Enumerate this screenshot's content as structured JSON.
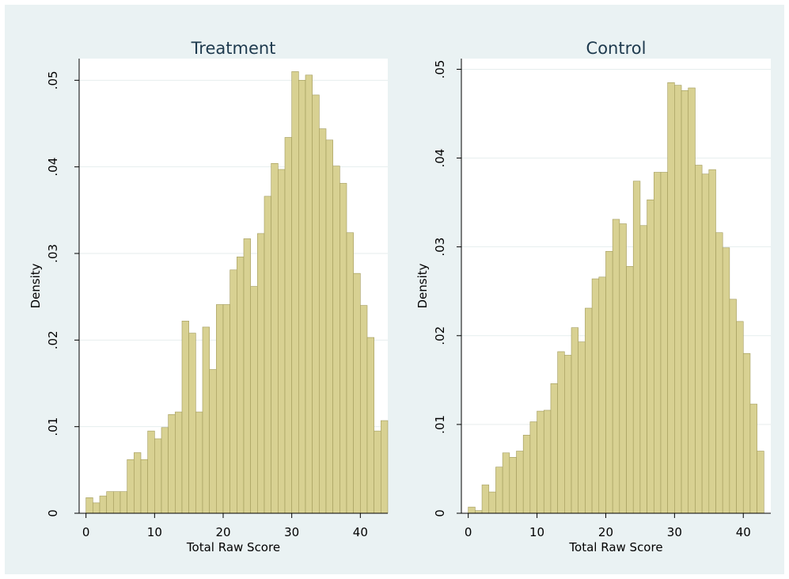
{
  "colors": {
    "background": "#eaf2f3",
    "plot_background": "#ffffff",
    "bar_fill": "#d8d192",
    "bar_stroke": "#a19a5a",
    "grid": "#e6eeee"
  },
  "chart_data": [
    {
      "type": "bar",
      "title": "Treatment",
      "xlabel": "Total Raw Score",
      "ylabel": "Density",
      "xlim": [
        -1,
        44
      ],
      "ylim": [
        0,
        0.0525
      ],
      "xticks": [
        0,
        10,
        20,
        30,
        40
      ],
      "xtick_labels": [
        "0",
        "10",
        "20",
        "30",
        "40"
      ],
      "yticks": [
        0,
        0.01,
        0.02,
        0.03,
        0.04,
        0.05
      ],
      "ytick_labels": [
        "0",
        ".01",
        ".02",
        ".03",
        ".04",
        ".05"
      ],
      "grid": true,
      "bin_width": 1,
      "bin_start": 0,
      "values": [
        0.0018,
        0.0012,
        0.002,
        0.0025,
        0.0025,
        0.0025,
        0.0062,
        0.007,
        0.0062,
        0.0095,
        0.0086,
        0.0099,
        0.0114,
        0.0117,
        0.0222,
        0.0208,
        0.0117,
        0.0215,
        0.0166,
        0.0241,
        0.0241,
        0.0281,
        0.0296,
        0.0317,
        0.0262,
        0.0323,
        0.0366,
        0.0404,
        0.0397,
        0.0434,
        0.051,
        0.05,
        0.0506,
        0.0483,
        0.0444,
        0.0431,
        0.0401,
        0.0381,
        0.0324,
        0.0277,
        0.024,
        0.0203,
        0.0095,
        0.0107
      ]
    },
    {
      "type": "bar",
      "title": "Control",
      "xlabel": "Total Raw Score",
      "ylabel": "Density",
      "xlim": [
        -1,
        44
      ],
      "ylim": [
        0,
        0.0512
      ],
      "xticks": [
        0,
        10,
        20,
        30,
        40
      ],
      "xtick_labels": [
        "0",
        "10",
        "20",
        "30",
        "40"
      ],
      "yticks": [
        0,
        0.01,
        0.02,
        0.03,
        0.04,
        0.05
      ],
      "ytick_labels": [
        "0",
        ".01",
        ".02",
        ".03",
        ".04",
        ".05"
      ],
      "grid": true,
      "bin_width": 1,
      "bin_start": 0,
      "values": [
        0.0007,
        0.0003,
        0.0032,
        0.0024,
        0.0052,
        0.0068,
        0.0063,
        0.007,
        0.0088,
        0.0103,
        0.0115,
        0.0116,
        0.0146,
        0.0182,
        0.0178,
        0.0209,
        0.0193,
        0.0231,
        0.0264,
        0.0266,
        0.0295,
        0.0331,
        0.0326,
        0.0278,
        0.0374,
        0.0324,
        0.0353,
        0.0384,
        0.0384,
        0.0485,
        0.0482,
        0.0476,
        0.0479,
        0.0392,
        0.0382,
        0.0387,
        0.0316,
        0.0299,
        0.0241,
        0.0216,
        0.018,
        0.0123,
        0.007
      ]
    }
  ]
}
